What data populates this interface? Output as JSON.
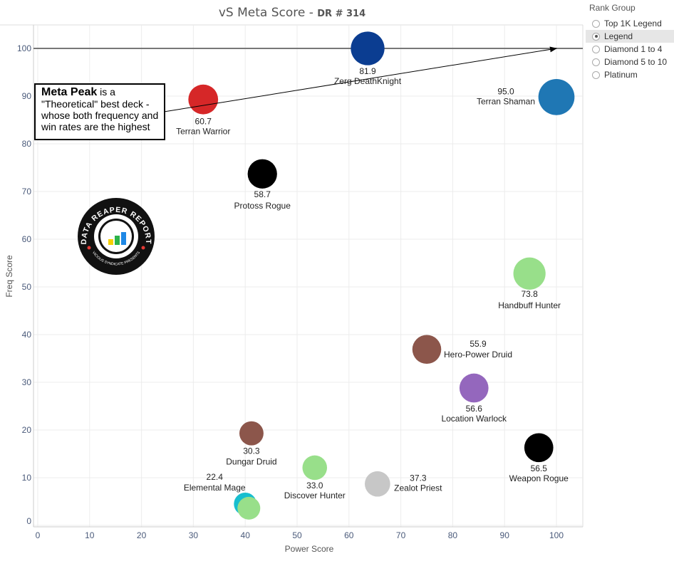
{
  "title": {
    "main": "vS Meta Score",
    "sep": " - ",
    "sub": "DR # 314"
  },
  "legend": {
    "title": "Rank Group",
    "options": [
      "Top 1K Legend",
      "Legend",
      "Diamond 1 to 4",
      "Diamond 5 to 10",
      "Platinum"
    ],
    "selected": "Legend"
  },
  "annotation": {
    "bold": "Meta Peak",
    "text": " is a \"Theoretical\" best deck - whose both frequency and win rates are the highest"
  },
  "logo": {
    "text": "DATA REAPER REPORT",
    "subtext": "VICIOUS SYNDICATE PRESENTS"
  },
  "chart_data": {
    "type": "scatter",
    "title": "vS Meta Score - DR # 314",
    "xlabel": "Power Score",
    "ylabel": "Freq Score",
    "xlim": [
      0,
      105
    ],
    "ylim": [
      0,
      105
    ],
    "xticks": [
      0,
      10,
      20,
      30,
      40,
      50,
      60,
      70,
      80,
      90,
      100
    ],
    "yticks": [
      0,
      10,
      20,
      30,
      40,
      50,
      60,
      70,
      80,
      90,
      100
    ],
    "grid": true,
    "reference_line": {
      "y": 100
    },
    "arrow_target": {
      "x": 100,
      "y": 100
    },
    "points": [
      {
        "name": "Zerg DeathKnight",
        "score": "81.9",
        "x": 63.6,
        "y": 100,
        "color": "#0b3d91"
      },
      {
        "name": "Terran Shaman",
        "score": "95.0",
        "x": 100,
        "y": 89.8,
        "color": "#1f77b4"
      },
      {
        "name": "Terran Warrior",
        "score": "60.7",
        "x": 31.9,
        "y": 89.3,
        "color": "#d62728"
      },
      {
        "name": "Protoss Rogue",
        "score": "58.7",
        "x": 43.3,
        "y": 73.7,
        "color": "#000000"
      },
      {
        "name": "Handbuff Hunter",
        "score": "73.8",
        "x": 94.8,
        "y": 52.8,
        "color": "#98df8a"
      },
      {
        "name": "Hero-Power Druid",
        "score": "55.9",
        "x": 75.0,
        "y": 36.9,
        "color": "#8c564b"
      },
      {
        "name": "Location Warlock",
        "score": "56.6",
        "x": 84.1,
        "y": 28.8,
        "color": "#9467bd"
      },
      {
        "name": "Weapon Rogue",
        "score": "56.5",
        "x": 96.6,
        "y": 16.3,
        "color": "#000000"
      },
      {
        "name": "Dungar Druid",
        "score": "30.3",
        "x": 41.2,
        "y": 19.3,
        "color": "#8c564b"
      },
      {
        "name": "Discover Hunter",
        "score": "33.0",
        "x": 53.4,
        "y": 12.1,
        "color": "#98df8a"
      },
      {
        "name": "Zealot Priest",
        "score": "37.3",
        "x": 65.5,
        "y": 8.7,
        "color": "#c7c7c7"
      },
      {
        "name": "Elemental Mage",
        "score": "22.4",
        "x": 40.0,
        "y": 4.5,
        "color": "#17becf"
      },
      {
        "name": "",
        "score": "",
        "x": 40.7,
        "y": 3.6,
        "color": "#98df8a"
      }
    ]
  }
}
